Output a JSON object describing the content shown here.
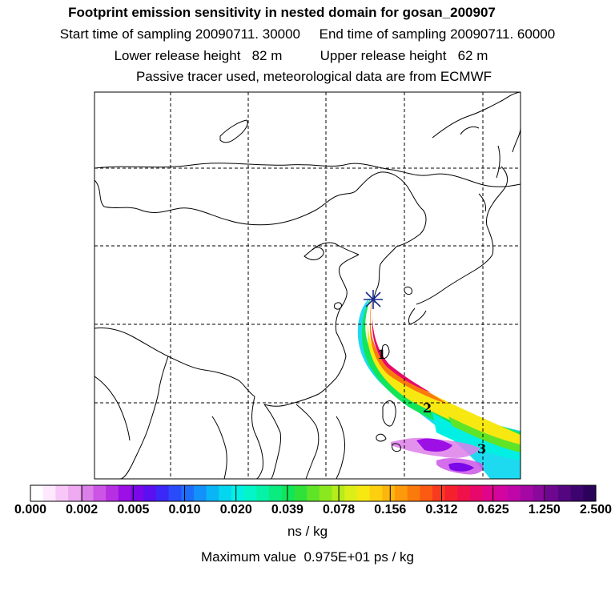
{
  "header": {
    "title": "Footprint emission sensitivity in nested domain for gosan_200907",
    "sampling": "Start time of sampling 20090711. 30000     End time of sampling 20090711. 60000",
    "release": "Lower release height   82 m          Upper release height   62 m",
    "tracer": "Passive tracer used, meteorological data are from ECMWF"
  },
  "map": {
    "region": "East Asia",
    "gridlines": "dashed",
    "trajectory_markers": [
      "1",
      "2",
      "3"
    ],
    "receptor_marker": "star-icon"
  },
  "colorbar": {
    "ticks": [
      "0.000",
      "0.002",
      "0.005",
      "0.010",
      "0.020",
      "0.039",
      "0.078",
      "0.156",
      "0.312",
      "0.625",
      "1.250",
      "2.500"
    ],
    "colors": [
      "#ffffff",
      "#fde8fd",
      "#f7c8f7",
      "#eeaaf0",
      "#dd7fe9",
      "#cc55e6",
      "#b72fe3",
      "#9c10e6",
      "#7a08e8",
      "#5a10f0",
      "#3b28f6",
      "#2a4bfa",
      "#1e6cfb",
      "#1391fb",
      "#0ab5f6",
      "#05d6ef",
      "#02f0e4",
      "#04f5c8",
      "#06f2a6",
      "#0aec80",
      "#11e55a",
      "#2ee23a",
      "#5fe428",
      "#8be81f",
      "#b5ec1b",
      "#dcee17",
      "#f7e812",
      "#fdd00f",
      "#fdb60d",
      "#fc9a0b",
      "#fb7a0c",
      "#fa5a12",
      "#f83a1e",
      "#f5202e",
      "#f0104a",
      "#e8086a",
      "#df048a",
      "#d205a0",
      "#bf06a8",
      "#a507a5",
      "#8a089c",
      "#6e0790",
      "#540580",
      "#3d036e",
      "#2a025a"
    ],
    "unit": "ns / kg"
  },
  "footer": {
    "max_value": "Maximum value  0.975E+01 ps / kg"
  }
}
